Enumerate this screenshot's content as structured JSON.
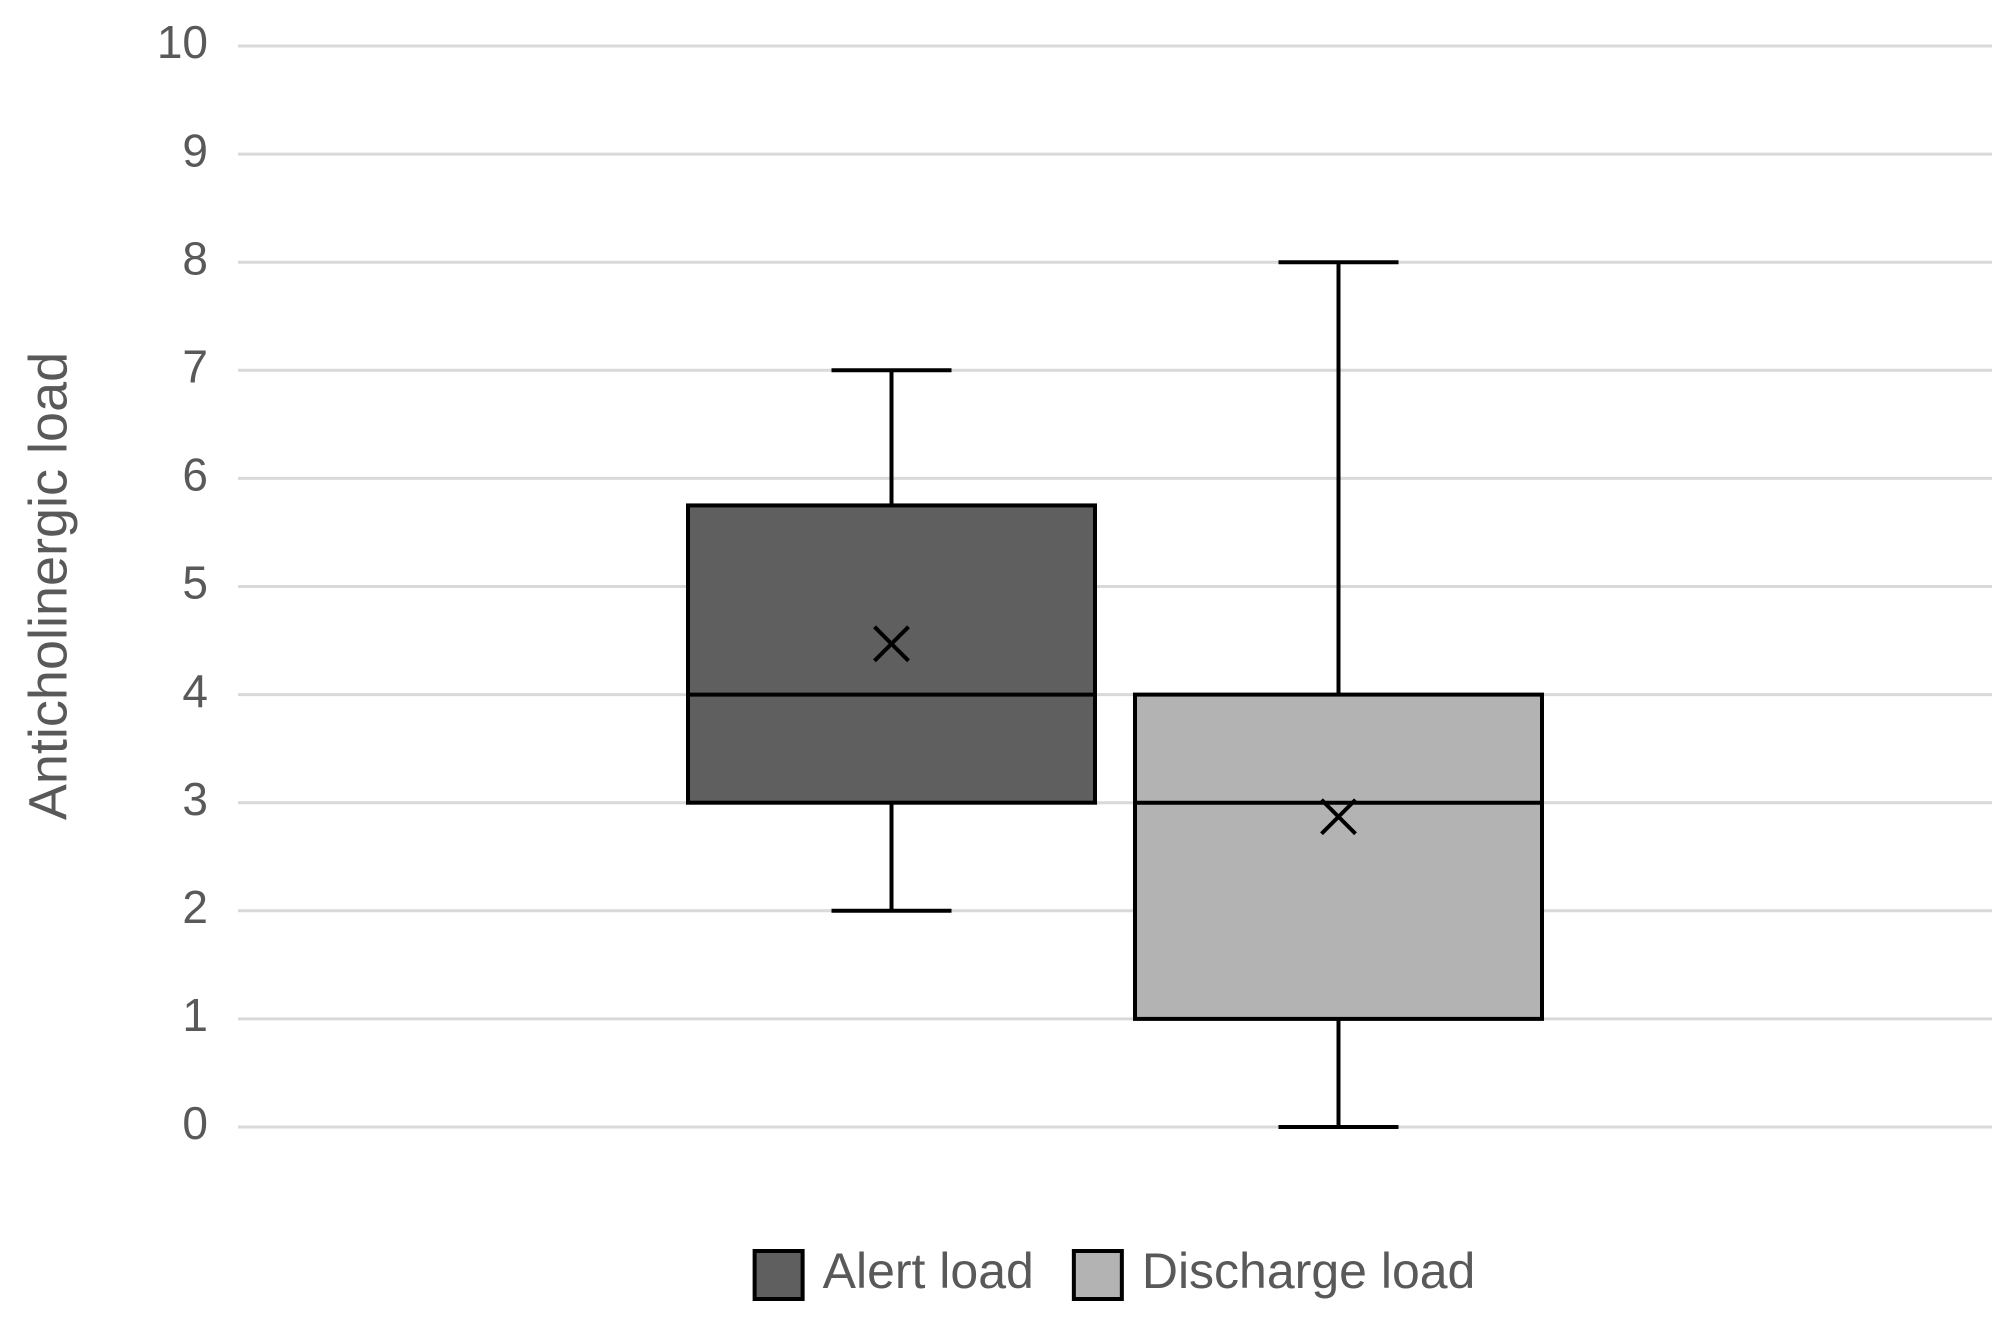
{
  "chart_data": {
    "type": "box",
    "ylabel": "Anticholinergic load",
    "ylim": [
      0,
      10
    ],
    "yticks": [
      0,
      1,
      2,
      3,
      4,
      5,
      6,
      7,
      8,
      9,
      10
    ],
    "grid": true,
    "legend": "bottom",
    "series": [
      {
        "name": "Alert load",
        "color": "#5f5f5f",
        "min": 2,
        "q1": 3,
        "median": 4,
        "q3": 5.75,
        "max": 7,
        "mean": 4.47
      },
      {
        "name": "Discharge load",
        "color": "#b3b3b3",
        "min": 0,
        "q1": 1,
        "median": 3,
        "q3": 4,
        "max": 8,
        "mean": 2.87
      }
    ]
  }
}
